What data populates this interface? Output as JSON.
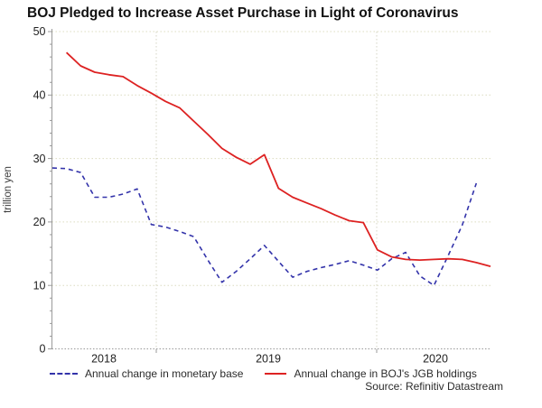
{
  "title": "BOJ Pledged to Increase Asset Purchase in Light of Coronavirus",
  "chart_data": {
    "type": "line",
    "title": "BOJ Pledged to Increase Asset Purchase in Light of Coronavirus",
    "ylabel": "trillion yen",
    "ylim": [
      0,
      50
    ],
    "yticks": [
      0,
      10,
      20,
      30,
      40,
      50
    ],
    "year_labels": [
      "2018",
      "2019",
      "2020"
    ],
    "grid": "dotted",
    "legend_position": "bottom",
    "x_unit": "month",
    "series": [
      {
        "name": "Annual change in monetary base",
        "color": "#3333aa",
        "line_style": "dashed",
        "start_month_index": 0,
        "values": [
          28.5,
          28.4,
          27.8,
          23.9,
          23.9,
          24.4,
          25.2,
          19.6,
          19.2,
          18.5,
          17.7,
          14.0,
          10.5,
          12.2,
          14.2,
          16.3,
          13.8,
          11.3,
          12.2,
          12.8,
          13.3,
          13.9,
          13.2,
          12.4,
          14.2,
          15.2,
          11.5,
          10.0,
          14.7,
          19.5,
          26.1
        ]
      },
      {
        "name": "Annual change in BOJ's JGB holdings",
        "color": "#dd2222",
        "line_style": "solid",
        "start_month_index": 1,
        "values": [
          46.7,
          44.6,
          43.6,
          43.2,
          42.9,
          41.5,
          40.3,
          39.0,
          38.0,
          35.9,
          33.8,
          31.6,
          30.2,
          29.1,
          30.6,
          25.3,
          23.9,
          23.0,
          22.1,
          21.1,
          20.2,
          19.9,
          15.6,
          14.5,
          14.1,
          14.0,
          14.1,
          14.2,
          14.1,
          13.6,
          13.0
        ]
      }
    ],
    "source": "Source: Refinitiv Datastream"
  }
}
